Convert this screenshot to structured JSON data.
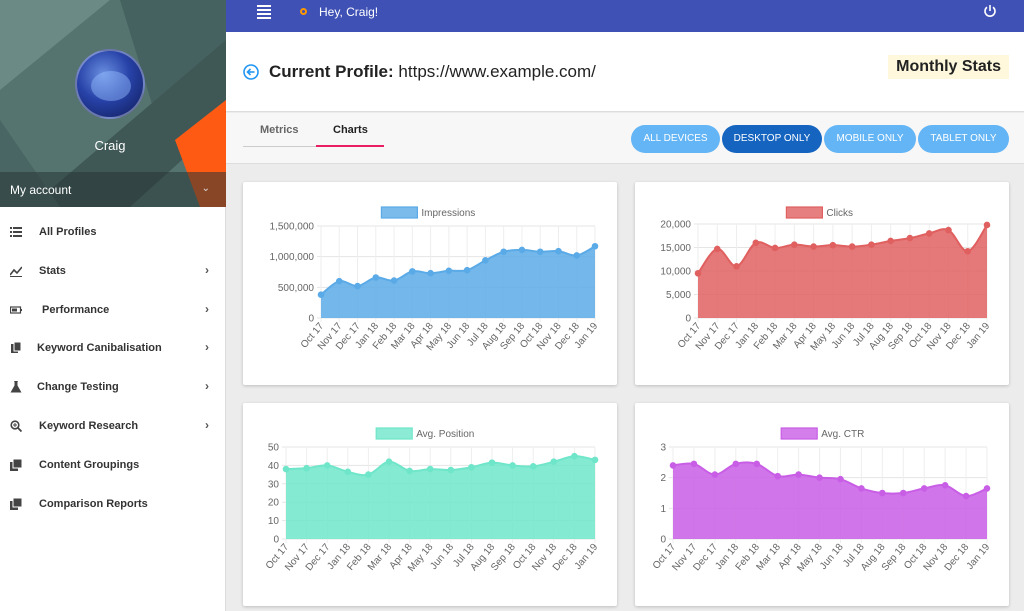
{
  "topbar": {
    "greeting": "Hey, Craig!",
    "menu_icon": "hamburger-icon",
    "power_icon": "power-icon"
  },
  "sidebar": {
    "user_name": "Craig",
    "account_label": "My account",
    "items": [
      {
        "label": "All Profiles",
        "icon": "list-icon",
        "has_chevron": false
      },
      {
        "label": "Stats",
        "icon": "chart-icon",
        "has_chevron": true
      },
      {
        "label": "Performance",
        "icon": "battery-icon",
        "has_chevron": true
      },
      {
        "label": "Keyword Canibalisation",
        "icon": "copy-icon",
        "has_chevron": true
      },
      {
        "label": "Change Testing",
        "icon": "flask-icon",
        "has_chevron": true
      },
      {
        "label": "Keyword Research",
        "icon": "search-icon",
        "has_chevron": true
      },
      {
        "label": "Content Groupings",
        "icon": "library-icon",
        "has_chevron": false
      },
      {
        "label": "Comparison Reports",
        "icon": "library-icon",
        "has_chevron": false
      }
    ]
  },
  "header": {
    "title_label": "Current Profile:",
    "title_value": "https://www.example.com/",
    "monthly_stats": "Monthly Stats"
  },
  "tabs": {
    "metrics": "Metrics",
    "charts": "Charts",
    "active": "Charts"
  },
  "filters": {
    "all": "ALL DEVICES",
    "desktop": "DESKTOP ONLY",
    "mobile": "MOBILE ONLY",
    "tablet": "TABLET ONLY",
    "active": "DESKTOP ONLY"
  },
  "chart_data": [
    {
      "type": "area",
      "x": [
        "Oct 17",
        "Nov 17",
        "Dec 17",
        "Jan 18",
        "Feb 18",
        "Mar 18",
        "Apr 18",
        "May 18",
        "Jun 18",
        "Jul 18",
        "Aug 18",
        "Sep 18",
        "Oct 18",
        "Nov 18",
        "Dec 18",
        "Jan 19"
      ],
      "series": [
        {
          "name": "Impressions",
          "values": [
            380000,
            600000,
            520000,
            660000,
            610000,
            760000,
            730000,
            770000,
            780000,
            940000,
            1080000,
            1110000,
            1080000,
            1090000,
            1020000,
            1170000
          ]
        }
      ],
      "yticks": [
        "1,500,000",
        "1,000,000",
        "500,000",
        "0"
      ],
      "ylim": [
        0,
        1500000
      ],
      "color": "#5aaae7",
      "legend": "top"
    },
    {
      "type": "area",
      "x": [
        "Oct 17",
        "Nov 17",
        "Dec 17",
        "Jan 18",
        "Feb 18",
        "Mar 18",
        "Apr 18",
        "May 18",
        "Jun 18",
        "Jul 18",
        "Aug 18",
        "Sep 18",
        "Oct 18",
        "Nov 18",
        "Dec 18",
        "Jan 19"
      ],
      "series": [
        {
          "name": "Clicks",
          "values": [
            9500,
            14700,
            11000,
            16000,
            14900,
            15600,
            15200,
            15500,
            15200,
            15600,
            16400,
            17000,
            18000,
            18700,
            14200,
            19800
          ]
        }
      ],
      "yticks": [
        "20,000",
        "15,000",
        "10,000",
        "5,000",
        "0"
      ],
      "ylim": [
        0,
        20000
      ],
      "color": "#e06060",
      "legend": "top"
    },
    {
      "type": "area",
      "x": [
        "Oct 17",
        "Nov 17",
        "Dec 17",
        "Jan 18",
        "Feb 18",
        "Mar 18",
        "Apr 18",
        "May 18",
        "Jun 18",
        "Jul 18",
        "Aug 18",
        "Sep 18",
        "Oct 18",
        "Nov 18",
        "Dec 18",
        "Jan 19"
      ],
      "series": [
        {
          "name": "Avg. Position",
          "values": [
            38,
            38.5,
            40,
            36.5,
            35,
            42,
            37,
            38,
            37.5,
            39,
            41.5,
            40,
            39.5,
            42,
            45,
            43
          ]
        }
      ],
      "yticks": [
        "50",
        "40",
        "30",
        "20",
        "10",
        "0"
      ],
      "ylim": [
        0,
        50
      ],
      "color": "#6fe6c9",
      "legend": "top"
    },
    {
      "type": "area",
      "x": [
        "Oct 17",
        "Nov 17",
        "Dec 17",
        "Jan 18",
        "Feb 18",
        "Mar 18",
        "Apr 18",
        "May 18",
        "Jun 18",
        "Jul 18",
        "Aug 18",
        "Sep 18",
        "Oct 18",
        "Nov 18",
        "Dec 18",
        "Jan 19"
      ],
      "series": [
        {
          "name": "Avg. CTR",
          "values": [
            2.4,
            2.45,
            2.1,
            2.45,
            2.45,
            2.05,
            2.1,
            2.0,
            1.95,
            1.65,
            1.5,
            1.5,
            1.65,
            1.75,
            1.4,
            1.65
          ]
        }
      ],
      "yticks": [
        "3",
        "2",
        "1",
        "0"
      ],
      "ylim": [
        0,
        3
      ],
      "color": "#c95ee6",
      "legend": "top"
    }
  ]
}
